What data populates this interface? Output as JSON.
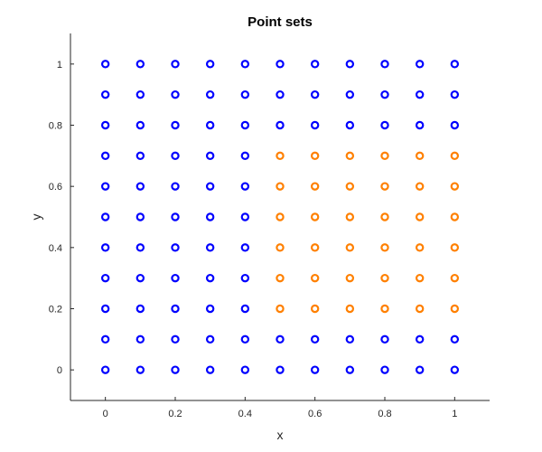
{
  "chart_data": {
    "type": "scatter",
    "title": "Point sets",
    "xlabel": "x",
    "ylabel": "y",
    "xlim": [
      -0.1,
      1.1
    ],
    "ylim": [
      -0.1,
      1.1
    ],
    "xticks": [
      0,
      0.2,
      0.4,
      0.6,
      0.8,
      1
    ],
    "yticks": [
      0,
      0.2,
      0.4,
      0.6,
      0.8,
      1
    ],
    "xtick_labels": [
      "0",
      "0.2",
      "0.4",
      "0.6",
      "0.8",
      "1"
    ],
    "ytick_labels": [
      "0",
      "0.2",
      "0.4",
      "0.6",
      "0.8",
      "1"
    ],
    "grid": false,
    "marker": "open-circle",
    "series": [
      {
        "color": "#0000ff",
        "points": [
          [
            0,
            0
          ],
          [
            0.1,
            0
          ],
          [
            0.2,
            0
          ],
          [
            0.3,
            0
          ],
          [
            0.4,
            0
          ],
          [
            0.5,
            0
          ],
          [
            0.6,
            0
          ],
          [
            0.7,
            0
          ],
          [
            0.8,
            0
          ],
          [
            0.9,
            0
          ],
          [
            1,
            0
          ],
          [
            0,
            0.1
          ],
          [
            0.1,
            0.1
          ],
          [
            0.2,
            0.1
          ],
          [
            0.3,
            0.1
          ],
          [
            0.4,
            0.1
          ],
          [
            0.5,
            0.1
          ],
          [
            0.6,
            0.1
          ],
          [
            0.7,
            0.1
          ],
          [
            0.8,
            0.1
          ],
          [
            0.9,
            0.1
          ],
          [
            1,
            0.1
          ],
          [
            0,
            0.2
          ],
          [
            0.1,
            0.2
          ],
          [
            0.2,
            0.2
          ],
          [
            0.3,
            0.2
          ],
          [
            0.4,
            0.2
          ],
          [
            0,
            0.3
          ],
          [
            0.1,
            0.3
          ],
          [
            0.2,
            0.3
          ],
          [
            0.3,
            0.3
          ],
          [
            0.4,
            0.3
          ],
          [
            0,
            0.4
          ],
          [
            0.1,
            0.4
          ],
          [
            0.2,
            0.4
          ],
          [
            0.3,
            0.4
          ],
          [
            0.4,
            0.4
          ],
          [
            0,
            0.5
          ],
          [
            0.1,
            0.5
          ],
          [
            0.2,
            0.5
          ],
          [
            0.3,
            0.5
          ],
          [
            0.4,
            0.5
          ],
          [
            0,
            0.6
          ],
          [
            0.1,
            0.6
          ],
          [
            0.2,
            0.6
          ],
          [
            0.3,
            0.6
          ],
          [
            0.4,
            0.6
          ],
          [
            0,
            0.7
          ],
          [
            0.1,
            0.7
          ],
          [
            0.2,
            0.7
          ],
          [
            0.3,
            0.7
          ],
          [
            0.4,
            0.7
          ],
          [
            0,
            0.8
          ],
          [
            0.1,
            0.8
          ],
          [
            0.2,
            0.8
          ],
          [
            0.3,
            0.8
          ],
          [
            0.4,
            0.8
          ],
          [
            0.5,
            0.8
          ],
          [
            0.6,
            0.8
          ],
          [
            0.7,
            0.8
          ],
          [
            0.8,
            0.8
          ],
          [
            0.9,
            0.8
          ],
          [
            1,
            0.8
          ],
          [
            0,
            0.9
          ],
          [
            0.1,
            0.9
          ],
          [
            0.2,
            0.9
          ],
          [
            0.3,
            0.9
          ],
          [
            0.4,
            0.9
          ],
          [
            0.5,
            0.9
          ],
          [
            0.6,
            0.9
          ],
          [
            0.7,
            0.9
          ],
          [
            0.8,
            0.9
          ],
          [
            0.9,
            0.9
          ],
          [
            1,
            0.9
          ],
          [
            0,
            1
          ],
          [
            0.1,
            1
          ],
          [
            0.2,
            1
          ],
          [
            0.3,
            1
          ],
          [
            0.4,
            1
          ],
          [
            0.5,
            1
          ],
          [
            0.6,
            1
          ],
          [
            0.7,
            1
          ],
          [
            0.8,
            1
          ],
          [
            0.9,
            1
          ],
          [
            1,
            1
          ]
        ]
      },
      {
        "color": "#ff8000",
        "points": [
          [
            0.5,
            0.2
          ],
          [
            0.6,
            0.2
          ],
          [
            0.7,
            0.2
          ],
          [
            0.8,
            0.2
          ],
          [
            0.9,
            0.2
          ],
          [
            1,
            0.2
          ],
          [
            0.5,
            0.3
          ],
          [
            0.6,
            0.3
          ],
          [
            0.7,
            0.3
          ],
          [
            0.8,
            0.3
          ],
          [
            0.9,
            0.3
          ],
          [
            1,
            0.3
          ],
          [
            0.5,
            0.4
          ],
          [
            0.6,
            0.4
          ],
          [
            0.7,
            0.4
          ],
          [
            0.8,
            0.4
          ],
          [
            0.9,
            0.4
          ],
          [
            1,
            0.4
          ],
          [
            0.5,
            0.5
          ],
          [
            0.6,
            0.5
          ],
          [
            0.7,
            0.5
          ],
          [
            0.8,
            0.5
          ],
          [
            0.9,
            0.5
          ],
          [
            1,
            0.5
          ],
          [
            0.5,
            0.6
          ],
          [
            0.6,
            0.6
          ],
          [
            0.7,
            0.6
          ],
          [
            0.8,
            0.6
          ],
          [
            0.9,
            0.6
          ],
          [
            1,
            0.6
          ],
          [
            0.5,
            0.7
          ],
          [
            0.6,
            0.7
          ],
          [
            0.7,
            0.7
          ],
          [
            0.8,
            0.7
          ],
          [
            0.9,
            0.7
          ],
          [
            1,
            0.7
          ]
        ]
      }
    ]
  }
}
